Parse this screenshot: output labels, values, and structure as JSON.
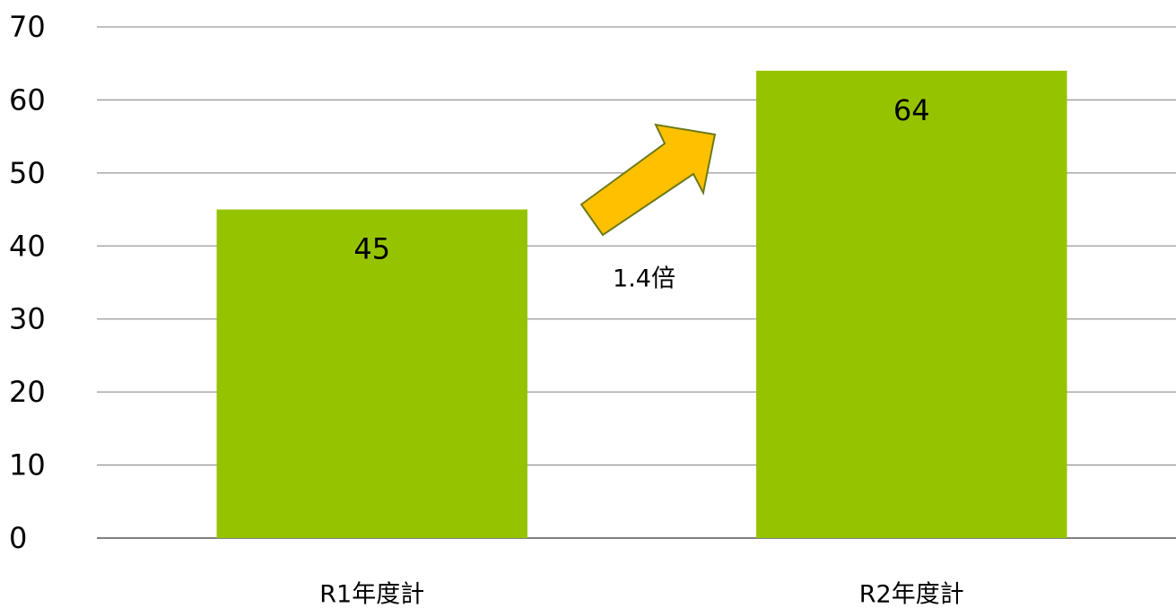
{
  "chart_data": {
    "type": "bar",
    "categories": [
      "R1年度計",
      "R2年度計"
    ],
    "values": [
      45,
      64
    ],
    "color": "#96c300",
    "ylim": [
      0,
      70
    ],
    "yticks": [
      0,
      10,
      20,
      30,
      40,
      50,
      60,
      70
    ],
    "grid": true,
    "annotation": "1.4倍"
  }
}
